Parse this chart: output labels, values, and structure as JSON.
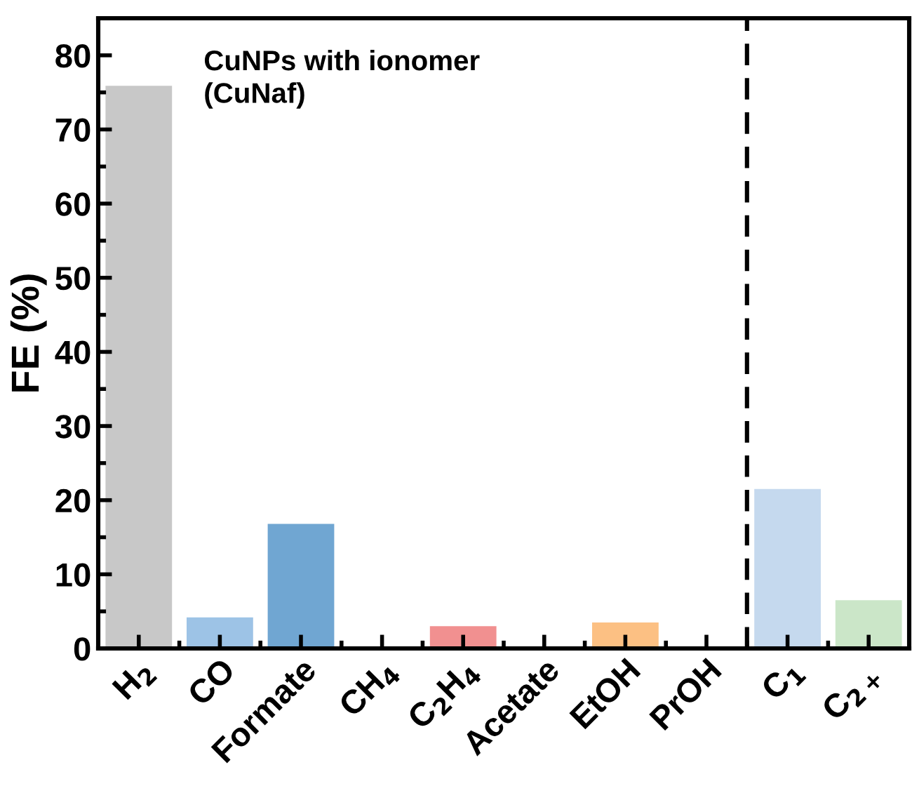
{
  "chart_data": {
    "type": "bar",
    "categories": [
      "H$_{2}$",
      "CO",
      "Formate",
      "CH$_{4}$",
      "C$_{2}$H$_{4}$",
      "Acetate",
      "EtOH",
      "PrOH",
      "C$_{1}$",
      "C$_{2+}$"
    ],
    "values": [
      75.9,
      4.2,
      16.8,
      0,
      3.0,
      0,
      3.5,
      0,
      21.5,
      6.5
    ],
    "colors": [
      "#c8c8c8",
      "#9dc3e6",
      "#70a6d2",
      "#f19090",
      "#f19090",
      "#fcc083",
      "#fcc083",
      "#c5d9ee",
      "#c5d9ee",
      "#cbe6c8"
    ],
    "ylabel": "FE (%)",
    "ylim": [
      0,
      85
    ],
    "yticks": [
      0,
      10,
      20,
      30,
      40,
      50,
      60,
      70,
      80
    ],
    "annotations": [
      "CuNPs with ionomer\n(CuNaf)"
    ],
    "grid": false,
    "legend": false
  }
}
